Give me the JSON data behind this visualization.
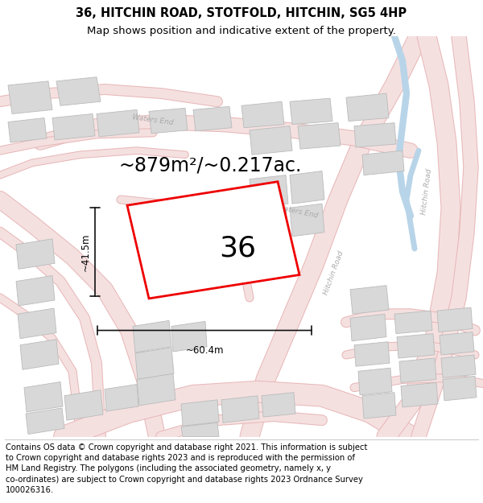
{
  "title_line1": "36, HITCHIN ROAD, STOTFOLD, HITCHIN, SG5 4HP",
  "title_line2": "Map shows position and indicative extent of the property.",
  "area_text": "~879m²/~0.217ac.",
  "label_36": "36",
  "dim_height": "~41.5m",
  "dim_width": "~60.4m",
  "footer_lines": [
    "Contains OS data © Crown copyright and database right 2021. This information is subject",
    "to Crown copyright and database rights 2023 and is reproduced with the permission of",
    "HM Land Registry. The polygons (including the associated geometry, namely x, y",
    "co-ordinates) are subject to Crown copyright and database rights 2023 Ordnance Survey",
    "100026316."
  ],
  "bg_color": "#ffffff",
  "map_bg": "#fdf8f8",
  "plot_outline_color": "#ee0000",
  "building_fill": "#d8d8d8",
  "building_stroke": "#bbbbbb",
  "road_fill": "#f5e0e0",
  "road_edge": "#e8b8b8",
  "road_label_color": "#aaaaaa",
  "water_color": "#b8d4e8",
  "dim_line_color": "#111111",
  "title_fontsize": 10.5,
  "subtitle_fontsize": 9.5,
  "area_fontsize": 17,
  "label_fontsize": 26,
  "footer_fontsize": 7.2
}
